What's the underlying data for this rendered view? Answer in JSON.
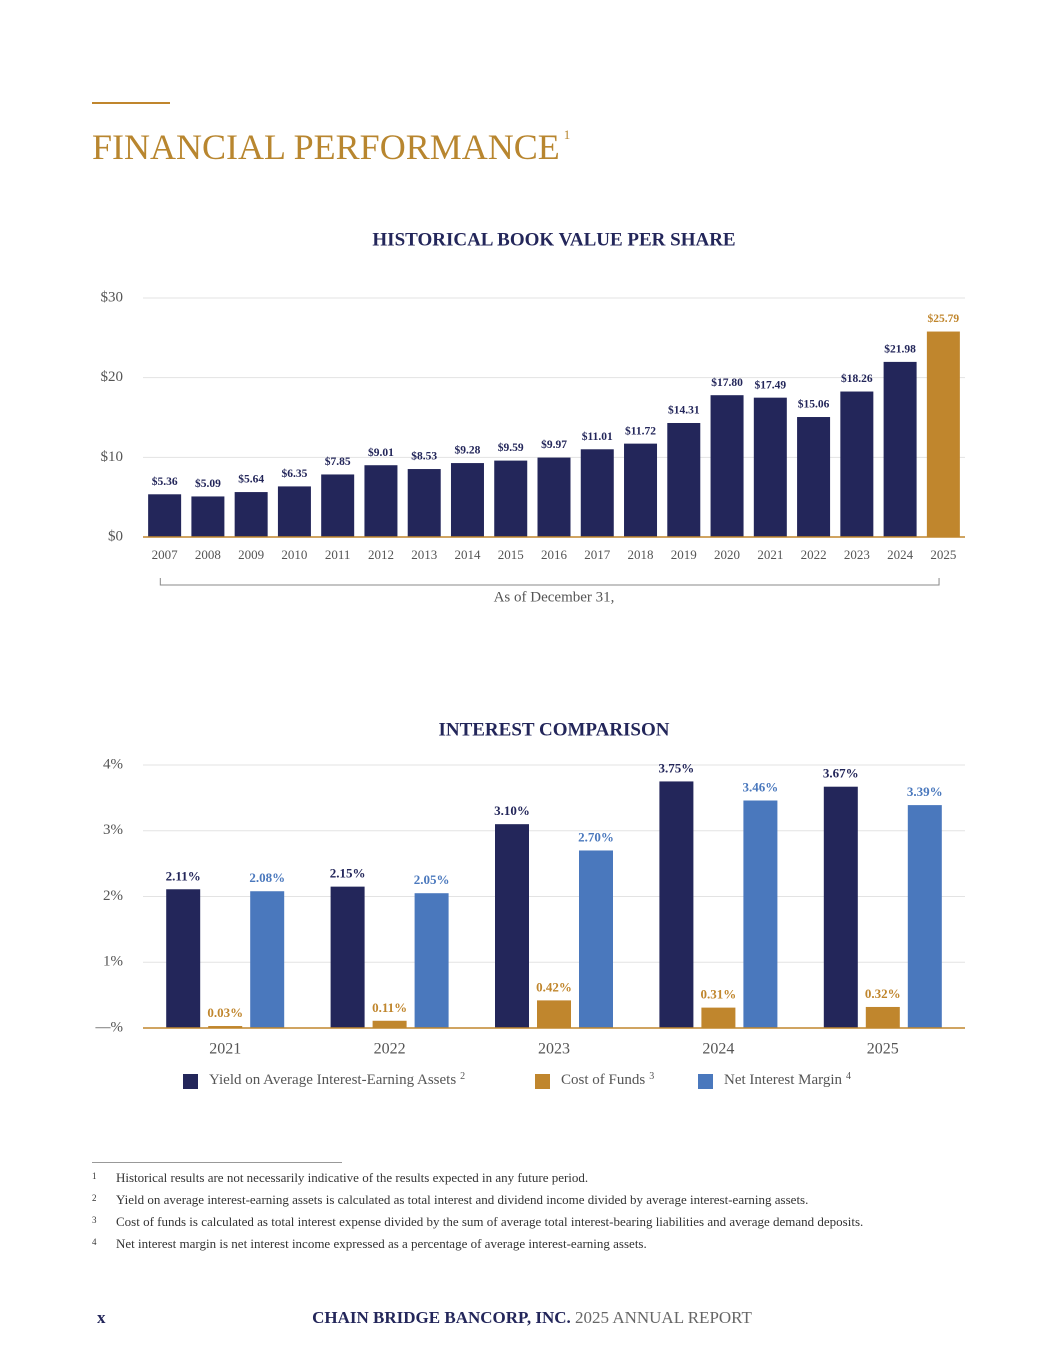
{
  "title": "FINANCIAL PERFORMANCE",
  "title_note": "1",
  "chart_data": [
    {
      "type": "bar",
      "title": "HISTORICAL BOOK VALUE PER SHARE",
      "x_label": "As of December 31,",
      "categories": [
        "2007",
        "2008",
        "2009",
        "2010",
        "2011",
        "2012",
        "2013",
        "2014",
        "2015",
        "2016",
        "2017",
        "2018",
        "2019",
        "2020",
        "2021",
        "2022",
        "2023",
        "2024",
        "2025"
      ],
      "values": [
        5.36,
        5.09,
        5.64,
        6.35,
        7.85,
        9.01,
        8.53,
        9.28,
        9.59,
        9.97,
        11.01,
        11.72,
        14.31,
        17.8,
        17.49,
        15.06,
        18.26,
        21.98,
        25.79
      ],
      "value_labels": [
        "$5.36",
        "$5.09",
        "$5.64",
        "$6.35",
        "$7.85",
        "$9.01",
        "$8.53",
        "$9.28",
        "$9.59",
        "$9.97",
        "$11.01",
        "$11.72",
        "$14.31",
        "$17.80",
        "$17.49",
        "$15.06",
        "$18.26",
        "$21.98",
        "$25.79"
      ],
      "colors": [
        "#23265a",
        "#23265a",
        "#23265a",
        "#23265a",
        "#23265a",
        "#23265a",
        "#23265a",
        "#23265a",
        "#23265a",
        "#23265a",
        "#23265a",
        "#23265a",
        "#23265a",
        "#23265a",
        "#23265a",
        "#23265a",
        "#23265a",
        "#23265a",
        "#c0862d"
      ],
      "ylim": [
        0,
        30
      ],
      "yticks": [
        {
          "value": 0,
          "label": "$0"
        },
        {
          "value": 10,
          "label": "$10"
        },
        {
          "value": 20,
          "label": "$20"
        },
        {
          "value": 30,
          "label": "$30"
        }
      ],
      "grid": true
    },
    {
      "type": "bar",
      "title": "INTEREST COMPARISON",
      "categories": [
        "2021",
        "2022",
        "2023",
        "2024",
        "2025"
      ],
      "series": [
        {
          "name": "Yield on Average Interest-Earning Assets",
          "note": "2",
          "color": "#23265a",
          "values": [
            2.11,
            2.15,
            3.1,
            3.75,
            3.67
          ],
          "value_labels": [
            "2.11%",
            "2.15%",
            "3.10%",
            "3.75%",
            "3.67%"
          ]
        },
        {
          "name": "Cost of Funds",
          "note": "3",
          "color": "#c0862d",
          "values": [
            0.03,
            0.11,
            0.42,
            0.31,
            0.32
          ],
          "value_labels": [
            "0.03%",
            "0.11%",
            "0.42%",
            "0.31%",
            "0.32%"
          ]
        },
        {
          "name": "Net Interest Margin",
          "note": "4",
          "color": "#4a78bd",
          "values": [
            2.08,
            2.05,
            2.7,
            3.46,
            3.39
          ],
          "value_labels": [
            "2.08%",
            "2.05%",
            "2.70%",
            "3.46%",
            "3.39%"
          ]
        }
      ],
      "ylim": [
        0,
        4
      ],
      "yticks": [
        {
          "value": 0,
          "label": "—%"
        },
        {
          "value": 1,
          "label": "1%"
        },
        {
          "value": 2,
          "label": "2%"
        },
        {
          "value": 3,
          "label": "3%"
        },
        {
          "value": 4,
          "label": "4%"
        }
      ],
      "grid": true,
      "legend": "bottom"
    }
  ],
  "footnotes": [
    {
      "marker": "1",
      "text": "Historical results are not necessarily indicative of the results expected in any future period."
    },
    {
      "marker": "2",
      "text": "Yield on average interest-earning assets is calculated as total interest and dividend income divided by average interest-earning assets."
    },
    {
      "marker": "3",
      "text": "Cost of funds is calculated as total interest expense divided by the sum of average total interest-bearing liabilities and average demand deposits."
    },
    {
      "marker": "4",
      "text": "Net interest margin is net interest income expressed as a percentage of average interest-earning assets."
    }
  ],
  "footer": {
    "page": "x",
    "company": "CHAIN BRIDGE BANCORP, INC.",
    "report": "2025 ANNUAL REPORT"
  }
}
